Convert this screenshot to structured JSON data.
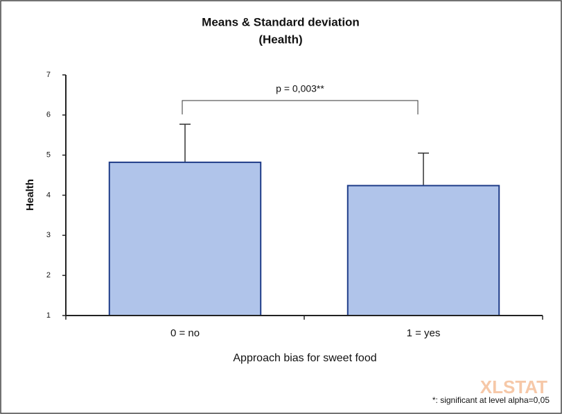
{
  "chart_data": {
    "type": "bar",
    "title": "Means & Standard deviation",
    "subtitle": "(Health)",
    "x_label": "Approach bias for sweet food",
    "y_label": "Health",
    "categories": [
      "0 = no",
      "1 = yes"
    ],
    "values": [
      4.82,
      4.24
    ],
    "errors": [
      0.95,
      0.81
    ],
    "color": "#b0c4ea",
    "edge_color": "#1f3c88",
    "ylim": [
      1,
      7
    ],
    "yticks": [
      1,
      2,
      3,
      4,
      5,
      6,
      7
    ],
    "grid": false,
    "annotation": "p = 0,003**",
    "footnote": "*: significant at level alpha=0,05",
    "watermark": "XLSTAT"
  }
}
